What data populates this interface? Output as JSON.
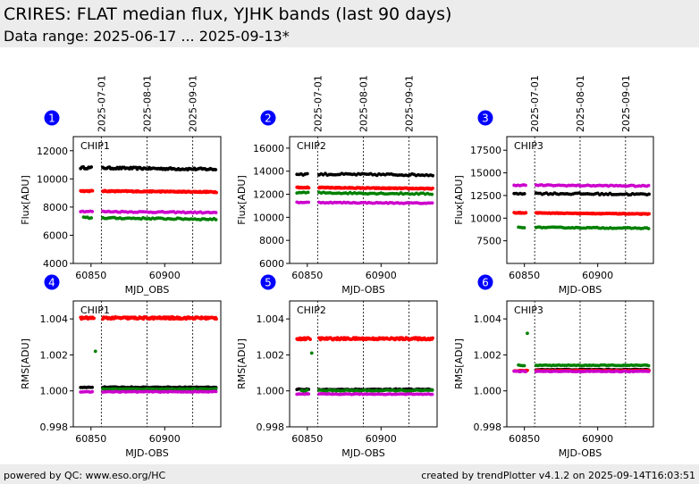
{
  "header": {
    "title": "CRIRES: FLAT median flux, YJHK bands (last 90 days)",
    "subtitle": "Data range: 2025-06-17 ... 2025-09-13*"
  },
  "footer": {
    "left": "powered by QC: www.eso.org/HC",
    "right": "created by trendPlotter v4.1.2 on 2025-09-14T16:03:51"
  },
  "colors": {
    "black": "#000000",
    "red": "#ff0000",
    "green": "#008000",
    "magenta": "#cc00cc",
    "badge": "#0000ff"
  },
  "date_markers": {
    "labels": [
      "2025-07-01",
      "2025-08-01",
      "2025-09-01"
    ],
    "mjd": [
      60857,
      60888,
      60919
    ]
  },
  "chart_data": [
    {
      "type": "scatter",
      "badge": "1",
      "label": "CHIP1",
      "xlabel": "MJD_OBS",
      "ylabel": "Flux[ADU]",
      "xlim": [
        60838,
        60938
      ],
      "ylim": [
        4000,
        13000
      ],
      "xticks": [
        60850,
        60900
      ],
      "yticks": [
        4000,
        6000,
        8000,
        10000,
        12000
      ],
      "ytick_labels": [
        "4000",
        "6000",
        "8000",
        "10000",
        "12000"
      ],
      "series": [
        {
          "color": "black",
          "base": 10800,
          "slope": -1.2,
          "dx": 0.9,
          "jitter": 70,
          "segments": [
            [
              60843,
              60851
            ],
            [
              60858,
              60935
            ]
          ]
        },
        {
          "color": "red",
          "base": 9150,
          "slope": -0.8,
          "dx": 0.5,
          "jitter": 40,
          "segments": [
            [
              60843,
              60851
            ],
            [
              60858,
              60935
            ]
          ]
        },
        {
          "color": "magenta",
          "base": 7700,
          "slope": -1.0,
          "dx": 1.3,
          "jitter": 40,
          "segments": [
            [
              60843,
              60851
            ],
            [
              60858,
              60935
            ]
          ]
        },
        {
          "color": "green",
          "base": 7250,
          "slope": -1.2,
          "dx": 1.3,
          "jitter": 50,
          "segments": [
            [
              60845,
              60851
            ],
            [
              60858,
              60935
            ]
          ]
        }
      ]
    },
    {
      "type": "scatter",
      "badge": "2",
      "label": "CHIP2",
      "xlabel": "MJD-OBS",
      "ylabel": "Flux[ADU]",
      "xlim": [
        60838,
        60938
      ],
      "ylim": [
        6000,
        17000
      ],
      "xticks": [
        60850,
        60900
      ],
      "yticks": [
        6000,
        8000,
        10000,
        12000,
        14000,
        16000
      ],
      "ytick_labels": [
        "6000",
        "8000",
        "10000",
        "12000",
        "14000",
        "16000"
      ],
      "series": [
        {
          "color": "black",
          "base": 13750,
          "slope": -0.7,
          "dx": 1.4,
          "jitter": 80,
          "segments": [
            [
              60843,
              60851
            ],
            [
              60858,
              60935
            ]
          ]
        },
        {
          "color": "red",
          "base": 12600,
          "slope": -1.2,
          "dx": 0.5,
          "jitter": 40,
          "segments": [
            [
              60843,
              60851
            ],
            [
              60858,
              60935
            ]
          ]
        },
        {
          "color": "green",
          "base": 12150,
          "slope": -1.2,
          "dx": 1.5,
          "jitter": 60,
          "segments": [
            [
              60843,
              60851
            ],
            [
              60858,
              60935
            ]
          ]
        },
        {
          "color": "magenta",
          "base": 11300,
          "slope": -0.8,
          "dx": 1.3,
          "jitter": 40,
          "segments": [
            [
              60843,
              60851
            ],
            [
              60858,
              60935
            ]
          ]
        }
      ]
    },
    {
      "type": "scatter",
      "badge": "3",
      "label": "CHIP3",
      "xlabel": "MJD-OBS",
      "ylabel": "Flux[ADU]",
      "xlim": [
        60838,
        60938
      ],
      "ylim": [
        5000,
        19000
      ],
      "xticks": [
        60850,
        60900
      ],
      "yticks": [
        7500,
        10000,
        12500,
        15000,
        17500
      ],
      "ytick_labels": [
        "7500",
        "10000",
        "12500",
        "15000",
        "17500"
      ],
      "series": [
        {
          "color": "magenta",
          "base": 13650,
          "slope": -1.0,
          "dx": 1.3,
          "jitter": 60,
          "segments": [
            [
              60843,
              60851
            ],
            [
              60858,
              60935
            ]
          ]
        },
        {
          "color": "black",
          "base": 12750,
          "slope": -1.3,
          "dx": 1.4,
          "jitter": 90,
          "segments": [
            [
              60843,
              60851
            ],
            [
              60858,
              60935
            ]
          ]
        },
        {
          "color": "red",
          "base": 10600,
          "slope": -1.5,
          "dx": 0.5,
          "jitter": 40,
          "segments": [
            [
              60843,
              60851
            ],
            [
              60858,
              60935
            ]
          ]
        },
        {
          "color": "green",
          "base": 9000,
          "slope": -1.2,
          "dx": 1.3,
          "jitter": 50,
          "segments": [
            [
              60846,
              60851
            ],
            [
              60858,
              60935
            ]
          ]
        }
      ]
    },
    {
      "type": "scatter",
      "badge": "4",
      "label": "CHIP1",
      "xlabel": "MJD-OBS",
      "ylabel": "RMS[ADU]",
      "xlim": [
        60838,
        60938
      ],
      "ylim": [
        0.998,
        1.005
      ],
      "xticks": [
        60850,
        60900
      ],
      "yticks": [
        0.998,
        1.0,
        1.002,
        1.004
      ],
      "ytick_labels": [
        "0.998",
        "1.000",
        "1.002",
        "1.004"
      ],
      "series": [
        {
          "color": "red",
          "base": 1.00405,
          "slope": 0,
          "dx": 0.5,
          "jitter": 6e-05,
          "segments": [
            [
              60843,
              60852
            ],
            [
              60858,
              60935
            ]
          ]
        },
        {
          "color": "black",
          "base": 1.0002,
          "slope": 0,
          "dx": 1.3,
          "jitter": 2e-05,
          "segments": [
            [
              60843,
              60851
            ],
            [
              60858,
              60935
            ]
          ]
        },
        {
          "color": "green",
          "base": 1.0001,
          "slope": 0,
          "dx": 1.3,
          "jitter": 2e-05,
          "segments": [
            [
              60858,
              60935
            ]
          ],
          "extra": [
            [
              60853,
              1.0022
            ]
          ]
        },
        {
          "color": "magenta",
          "base": 0.99995,
          "slope": 0,
          "dx": 1.3,
          "jitter": 2e-05,
          "segments": [
            [
              60843,
              60851
            ],
            [
              60858,
              60935
            ]
          ]
        }
      ]
    },
    {
      "type": "scatter",
      "badge": "5",
      "label": "CHIP2",
      "xlabel": "MJD-OBS",
      "ylabel": "RMS[ADU]",
      "xlim": [
        60838,
        60938
      ],
      "ylim": [
        0.998,
        1.005
      ],
      "xticks": [
        60850,
        60900
      ],
      "yticks": [
        0.998,
        1.0,
        1.002,
        1.004
      ],
      "ytick_labels": [
        "0.998",
        "1.000",
        "1.002",
        "1.004"
      ],
      "series": [
        {
          "color": "red",
          "base": 1.0029,
          "slope": 0,
          "dx": 0.5,
          "jitter": 6e-05,
          "segments": [
            [
              60843,
              60852
            ],
            [
              60858,
              60935
            ]
          ]
        },
        {
          "color": "black",
          "base": 1.00008,
          "slope": 0,
          "dx": 1.3,
          "jitter": 3e-05,
          "segments": [
            [
              60843,
              60851
            ],
            [
              60858,
              60935
            ]
          ]
        },
        {
          "color": "green",
          "base": 1.00002,
          "slope": 0,
          "dx": 1.3,
          "jitter": 3e-05,
          "segments": [
            [
              60846,
              60851
            ],
            [
              60858,
              60935
            ]
          ],
          "extra": [
            [
              60853,
              1.0021
            ]
          ]
        },
        {
          "color": "magenta",
          "base": 0.99982,
          "slope": 0,
          "dx": 1.3,
          "jitter": 2e-05,
          "segments": [
            [
              60843,
              60851
            ],
            [
              60858,
              60935
            ]
          ]
        }
      ]
    },
    {
      "type": "scatter",
      "badge": "6",
      "label": "CHIP3",
      "xlabel": "MJD-OBS",
      "ylabel": "RMS[ADU]",
      "xlim": [
        60838,
        60938
      ],
      "ylim": [
        0.998,
        1.005
      ],
      "xticks": [
        60850,
        60900
      ],
      "yticks": [
        0.998,
        1.0,
        1.002,
        1.004
      ],
      "ytick_labels": [
        "0.998",
        "1.000",
        "1.002",
        "1.004"
      ],
      "series": [
        {
          "color": "green",
          "base": 1.00142,
          "slope": 0,
          "dx": 1.3,
          "jitter": 2e-05,
          "segments": [
            [
              60846,
              60851
            ],
            [
              60858,
              60935
            ]
          ],
          "extra": [
            [
              60852,
              1.0032
            ]
          ]
        },
        {
          "color": "black",
          "base": 1.00118,
          "slope": 0,
          "dx": 1.3,
          "jitter": 2e-05,
          "segments": [
            [
              60858,
              60935
            ]
          ]
        },
        {
          "color": "red",
          "base": 1.00112,
          "slope": 0,
          "dx": 0.5,
          "jitter": 2e-05,
          "segments": [
            [
              60843,
              60852
            ],
            [
              60858,
              60935
            ]
          ]
        },
        {
          "color": "magenta",
          "base": 1.00108,
          "slope": 0,
          "dx": 1.3,
          "jitter": 2e-05,
          "segments": [
            [
              60843,
              60851
            ],
            [
              60858,
              60935
            ]
          ]
        }
      ]
    }
  ]
}
